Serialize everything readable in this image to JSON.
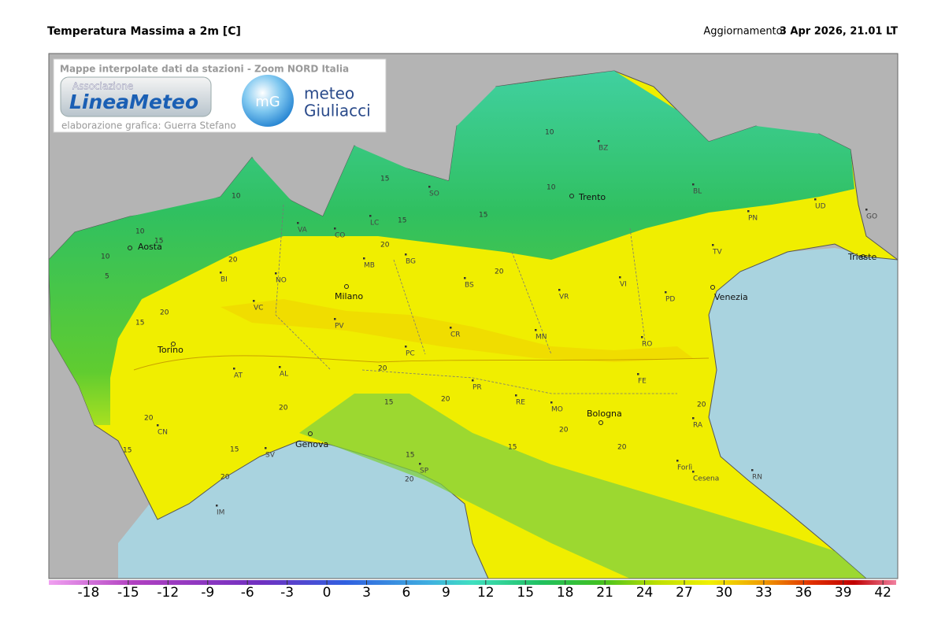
{
  "header": {
    "title": "Temperatura Massima a 2m [C]",
    "update_label": "Aggiornamento:",
    "update_time": "3 Apr 2026, 21.01 LT"
  },
  "info_box": {
    "caption": "Mappe interpolate dati da stazioni - Zoom NORD Italia",
    "logo_1": {
      "top": "Associazione",
      "name": "LineaMeteo"
    },
    "credit": "elaborazione grafica: Guerra Stefano",
    "logo_2": {
      "mark": "mG",
      "line1": "meteo",
      "line2": "Giuliacci"
    }
  },
  "cities": [
    "Aosta",
    "Torino",
    "Milano",
    "Trento",
    "Venezia",
    "Trieste",
    "Genova",
    "Bologna"
  ],
  "provinces": [
    "BI",
    "NO",
    "VC",
    "AT",
    "AL",
    "CN",
    "SV",
    "IM",
    "VA",
    "CO",
    "LC",
    "SO",
    "MB",
    "BG",
    "BS",
    "PV",
    "CR",
    "PC",
    "MN",
    "VR",
    "VI",
    "PD",
    "TV",
    "BL",
    "PN",
    "UD",
    "GO",
    "RO",
    "FE",
    "PR",
    "RE",
    "MO",
    "SP",
    "RA",
    "Forlì",
    "Cesena",
    "RN",
    "BZ"
  ],
  "contour_labels": [
    10,
    15,
    10,
    5,
    20,
    15,
    20,
    10,
    15,
    20,
    15,
    10,
    10,
    15,
    20,
    20,
    15,
    20,
    20,
    15,
    20,
    15,
    20,
    15,
    20,
    20,
    20,
    15,
    20
  ],
  "colorbar": {
    "range": [
      -21,
      43
    ],
    "ticks": [
      -18,
      -15,
      -12,
      -9,
      -6,
      -3,
      0,
      3,
      6,
      9,
      12,
      15,
      18,
      21,
      24,
      27,
      30,
      33,
      36,
      39,
      42
    ]
  }
}
